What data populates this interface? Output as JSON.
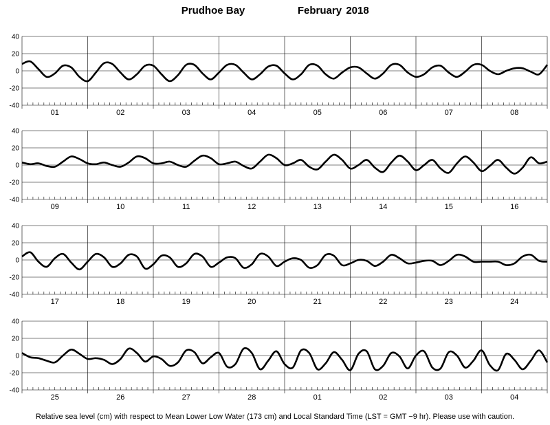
{
  "title": {
    "station": "Prudhoe Bay",
    "month": "February",
    "year": "2018"
  },
  "footer_note": "Relative sea level (cm) with respect to Mean Lower Low Water (173 cm) and Local Standard Time (LST = GMT −9 hr). Please use with caution.",
  "chart_data": [
    {
      "type": "line",
      "panel": 1,
      "days": [
        "01",
        "02",
        "03",
        "04",
        "05",
        "06",
        "07",
        "08"
      ],
      "ylim": [
        -40,
        40
      ],
      "yticks": [
        40,
        20,
        0,
        -20,
        -40
      ],
      "grid": true,
      "x_unit": "hours from start of first day",
      "x": [
        0,
        3,
        6,
        9,
        12,
        15,
        18,
        21,
        24,
        27,
        30,
        33,
        36,
        39,
        42,
        45,
        48,
        51,
        54,
        57,
        60,
        63,
        66,
        69,
        72,
        75,
        78,
        81,
        84,
        87,
        90,
        93,
        96,
        99,
        102,
        105,
        108,
        111,
        114,
        117,
        120,
        123,
        126,
        129,
        132,
        135,
        138,
        141,
        144,
        147,
        150,
        153,
        156,
        159,
        162,
        165,
        168,
        171,
        174,
        177,
        180,
        183,
        186,
        189,
        192
      ],
      "series": [
        {
          "values": [
            8,
            11,
            2,
            -7,
            -3,
            6,
            4,
            -7,
            -12,
            -2,
            9,
            8,
            -2,
            -10,
            -4,
            6,
            6,
            -4,
            -12,
            -5,
            7,
            7,
            -3,
            -10,
            -2,
            7,
            7,
            -2,
            -10,
            -4,
            5,
            6,
            -3,
            -10,
            -4,
            7,
            6,
            -4,
            -9,
            -2,
            4,
            4,
            -3,
            -9,
            -3,
            7,
            7,
            -2,
            -7,
            -4,
            4,
            6,
            -2,
            -7,
            -1,
            7,
            7,
            0,
            -4,
            0,
            3,
            3,
            -1,
            -4,
            7
          ]
        }
      ]
    },
    {
      "type": "line",
      "panel": 2,
      "days": [
        "09",
        "10",
        "11",
        "12",
        "13",
        "14",
        "15",
        "16"
      ],
      "ylim": [
        -40,
        40
      ],
      "yticks": [
        40,
        20,
        0,
        -20,
        -40
      ],
      "grid": true,
      "x_unit": "hours from start of first day",
      "x": [
        0,
        3,
        6,
        9,
        12,
        15,
        18,
        21,
        24,
        27,
        30,
        33,
        36,
        39,
        42,
        45,
        48,
        51,
        54,
        57,
        60,
        63,
        66,
        69,
        72,
        75,
        78,
        81,
        84,
        87,
        90,
        93,
        96,
        99,
        102,
        105,
        108,
        111,
        114,
        117,
        120,
        123,
        126,
        129,
        132,
        135,
        138,
        141,
        144,
        147,
        150,
        153,
        156,
        159,
        162,
        165,
        168,
        171,
        174,
        177,
        180,
        183,
        186,
        189,
        192
      ],
      "series": [
        {
          "values": [
            3,
            1,
            2,
            -1,
            -2,
            4,
            10,
            7,
            2,
            1,
            3,
            0,
            -2,
            3,
            10,
            8,
            2,
            2,
            4,
            0,
            -2,
            5,
            11,
            8,
            1,
            2,
            4,
            -1,
            -4,
            4,
            12,
            8,
            0,
            2,
            6,
            -2,
            -5,
            4,
            12,
            6,
            -4,
            0,
            6,
            -3,
            -8,
            3,
            11,
            4,
            -6,
            0,
            6,
            -4,
            -9,
            2,
            10,
            3,
            -7,
            -1,
            6,
            -3,
            -10,
            -3,
            9,
            2,
            4
          ]
        }
      ]
    },
    {
      "type": "line",
      "panel": 3,
      "days": [
        "17",
        "18",
        "19",
        "20",
        "21",
        "22",
        "23",
        "24"
      ],
      "ylim": [
        -40,
        40
      ],
      "yticks": [
        40,
        20,
        0,
        -20,
        -40
      ],
      "grid": true,
      "x_unit": "hours from start of first day",
      "x": [
        0,
        3,
        6,
        9,
        12,
        15,
        18,
        21,
        24,
        27,
        30,
        33,
        36,
        39,
        42,
        45,
        48,
        51,
        54,
        57,
        60,
        63,
        66,
        69,
        72,
        75,
        78,
        81,
        84,
        87,
        90,
        93,
        96,
        99,
        102,
        105,
        108,
        111,
        114,
        117,
        120,
        123,
        126,
        129,
        132,
        135,
        138,
        141,
        144,
        147,
        150,
        153,
        156,
        159,
        162,
        165,
        168,
        171,
        174,
        177,
        180,
        183,
        186,
        189,
        192
      ],
      "series": [
        {
          "values": [
            4,
            9,
            -2,
            -8,
            2,
            7,
            -3,
            -11,
            -2,
            7,
            3,
            -8,
            -4,
            6,
            4,
            -10,
            -5,
            5,
            3,
            -8,
            -4,
            7,
            4,
            -8,
            -3,
            3,
            2,
            -9,
            -5,
            7,
            4,
            -7,
            -2,
            2,
            0,
            -9,
            -6,
            6,
            5,
            -6,
            -4,
            0,
            -1,
            -7,
            -2,
            6,
            2,
            -4,
            -3,
            -1,
            -1,
            -6,
            -1,
            6,
            4,
            -2,
            -2,
            -2,
            -2,
            -6,
            -4,
            4,
            6,
            -1,
            -2
          ]
        }
      ]
    },
    {
      "type": "line",
      "panel": 4,
      "days": [
        "25",
        "26",
        "27",
        "28",
        "01",
        "02",
        "03",
        "04"
      ],
      "ylim": [
        -40,
        40
      ],
      "yticks": [
        40,
        20,
        0,
        -20,
        -40
      ],
      "grid": true,
      "x_unit": "hours from start of first day",
      "x": [
        0,
        3,
        6,
        9,
        12,
        15,
        18,
        21,
        24,
        27,
        30,
        33,
        36,
        39,
        42,
        45,
        48,
        51,
        54,
        57,
        60,
        63,
        66,
        69,
        72,
        75,
        78,
        81,
        84,
        87,
        90,
        93,
        96,
        99,
        102,
        105,
        108,
        111,
        114,
        117,
        120,
        123,
        126,
        129,
        132,
        135,
        138,
        141,
        144,
        147,
        150,
        153,
        156,
        159,
        162,
        165,
        168,
        171,
        174,
        177,
        180,
        183,
        186,
        189,
        192
      ],
      "series": [
        {
          "values": [
            3,
            -2,
            -3,
            -6,
            -8,
            0,
            7,
            2,
            -4,
            -3,
            -5,
            -10,
            -4,
            8,
            3,
            -7,
            -1,
            -4,
            -12,
            -8,
            6,
            4,
            -9,
            -2,
            3,
            -13,
            -10,
            8,
            3,
            -16,
            -6,
            5,
            -10,
            -14,
            6,
            3,
            -16,
            -9,
            4,
            -5,
            -17,
            2,
            5,
            -16,
            -12,
            3,
            -1,
            -15,
            0,
            5,
            -14,
            -15,
            4,
            0,
            -14,
            -6,
            6,
            -11,
            -17,
            2,
            -5,
            -16,
            -6,
            6,
            -8
          ]
        }
      ]
    }
  ]
}
